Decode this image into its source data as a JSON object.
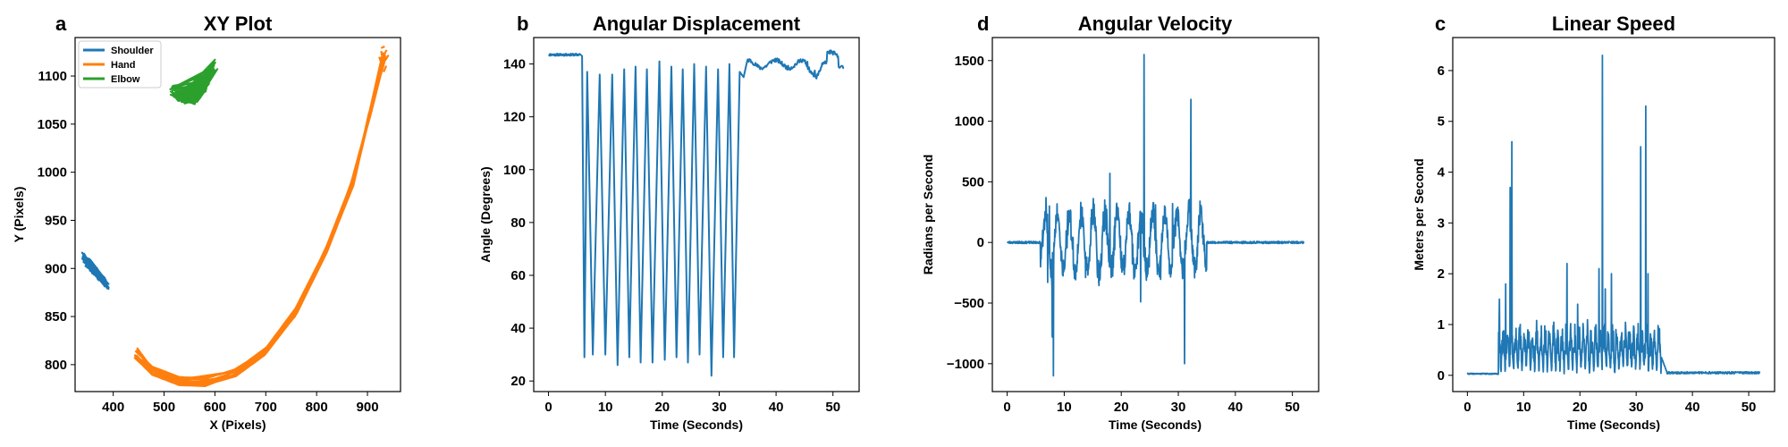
{
  "chart_data": [
    {
      "letter": "a",
      "type": "line",
      "title": "XY Plot",
      "xlabel": "X (Pixels)",
      "ylabel": "Y (Pixels)",
      "xlim": [
        325,
        965
      ],
      "ylim": [
        772,
        1140
      ],
      "xticks": [
        400,
        500,
        600,
        700,
        800,
        900
      ],
      "yticks": [
        800,
        850,
        900,
        950,
        1000,
        1050,
        1100
      ],
      "legend_position": "top-left",
      "series": [
        {
          "name": "Shoulder",
          "color": "#1f77b4",
          "kind": "shoulder"
        },
        {
          "name": "Hand",
          "color": "#ff7f0e",
          "kind": "hand"
        },
        {
          "name": "Elbow",
          "color": "#2ca02c",
          "kind": "elbow"
        }
      ]
    },
    {
      "letter": "b",
      "type": "line",
      "title": "Angular Displacement",
      "xlabel": "Time (Seconds)",
      "ylabel": "Angle (Degrees)",
      "xlim": [
        -2.6,
        54.6
      ],
      "ylim": [
        16,
        150
      ],
      "xticks": [
        0,
        10,
        20,
        30,
        40,
        50
      ],
      "yticks": [
        20,
        40,
        60,
        80,
        100,
        120,
        140
      ],
      "series": [
        {
          "color": "#1f77b4",
          "kind": "angle"
        }
      ]
    },
    {
      "letter": "d",
      "type": "line",
      "title": "Angular Velocity",
      "xlabel": "Time (Seconds)",
      "ylabel": "Radians per Second",
      "xlim": [
        -2.6,
        54.6
      ],
      "ylim": [
        -1230,
        1690
      ],
      "xticks": [
        0,
        10,
        20,
        30,
        40,
        50
      ],
      "yticks": [
        -1000,
        -500,
        0,
        500,
        1000,
        1500
      ],
      "series": [
        {
          "color": "#1f77b4",
          "kind": "velocity"
        }
      ]
    },
    {
      "letter": "c",
      "type": "line",
      "title": "Linear Speed",
      "xlabel": "Time (Seconds)",
      "ylabel": "Meters per Second",
      "xlim": [
        -2.6,
        54.6
      ],
      "ylim": [
        -0.32,
        6.65
      ],
      "xticks": [
        0,
        10,
        20,
        30,
        40,
        50
      ],
      "yticks": [
        0,
        1,
        2,
        3,
        4,
        5,
        6
      ],
      "series": [
        {
          "color": "#1f77b4",
          "kind": "speed"
        }
      ]
    }
  ]
}
